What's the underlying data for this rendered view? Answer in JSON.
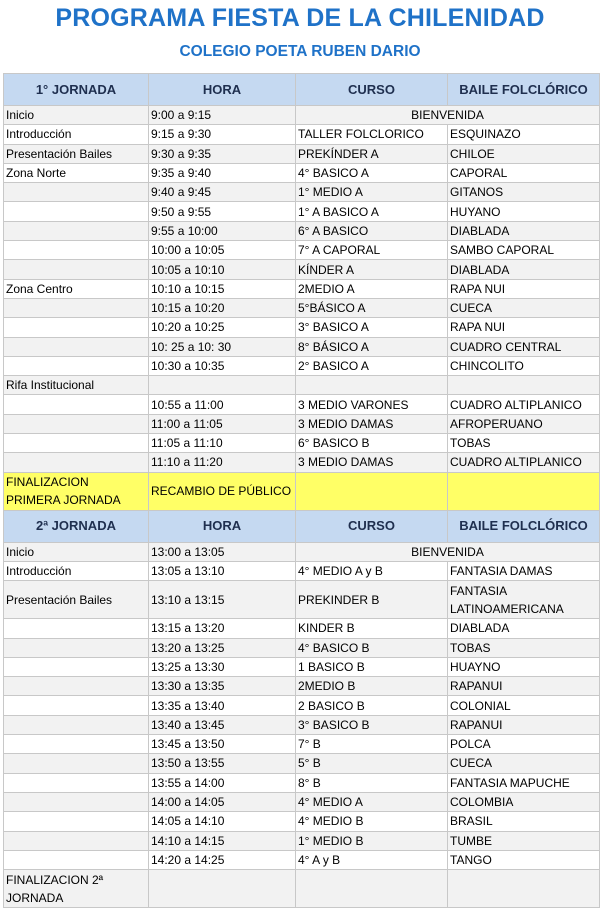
{
  "title": "PROGRAMA FIESTA DE LA CHILENIDAD",
  "subtitle": "COLEGIO POETA RUBEN DARIO",
  "colors": {
    "title": "#1f72c8",
    "header_bg": "#c5d9f1",
    "highlight_bg": "#ffff66",
    "alt_row_bg": "#f2f2f2"
  },
  "sections": [
    {
      "headers": [
        "1° JORNADA",
        "HORA",
        "CURSO",
        "BAILE FOLCLÓRICO"
      ],
      "rows": [
        {
          "label": "Inicio",
          "hora": "9:00 a 9:15",
          "merged": "BIENVENIDA"
        },
        {
          "label": "Introducción",
          "hora": "9:15 a 9:30",
          "curso": "TALLER FOLCLORICO",
          "baile": "ESQUINAZO"
        },
        {
          "label": "Presentación Bailes",
          "hora": "9:30 a 9:35",
          "curso": "PREKÍNDER A",
          "baile": "CHILOE"
        },
        {
          "label": "Zona Norte",
          "hora": "9:35 a 9:40",
          "curso": "4° BASICO A",
          "baile": "CAPORAL"
        },
        {
          "label": "",
          "hora": "9:40 a 9:45",
          "curso": "1° MEDIO A",
          "baile": "GITANOS"
        },
        {
          "label": "",
          "hora": "9:50 a 9:55",
          "curso": "1° A BASICO A",
          "baile": "HUYANO"
        },
        {
          "label": "",
          "hora": "9:55 a 10:00",
          "curso": "6° A BASICO",
          "baile": "DIABLADA"
        },
        {
          "label": "",
          "hora": "10:00 a 10:05",
          "curso": "7° A CAPORAL",
          "baile": " SAMBO CAPORAL"
        },
        {
          "label": "",
          "hora": "10:05 a 10:10",
          "curso": "KÍNDER A",
          "baile": "DIABLADA"
        },
        {
          "label": "Zona Centro",
          "hora": "10:10 a 10:15",
          "curso": "2MEDIO A",
          "baile": "RAPA NUI"
        },
        {
          "label": "",
          "hora": "10:15 a 10:20",
          "curso": "5°BÁSICO A",
          "baile": "CUECA"
        },
        {
          "label": "",
          "hora": "10:20 a 10:25",
          "curso": "3° BASICO A",
          "baile": "RAPA NUI"
        },
        {
          "label": "",
          "hora": "10: 25 a 10: 30",
          "curso": "8° BÁSICO A",
          "baile": "CUADRO CENTRAL"
        },
        {
          "label": "",
          "hora": "10:30 a 10:35",
          "curso": "2° BASICO A",
          "baile": "CHINCOLITO"
        },
        {
          "label": "Rifa Institucional",
          "hora": "",
          "curso": "",
          "baile": ""
        },
        {
          "label": "",
          "hora": "10:55 a 11:00",
          "curso": "3 MEDIO VARONES",
          "baile": "CUADRO ALTIPLANICO"
        },
        {
          "label": "",
          "hora": "11:00 a 11:05",
          "curso": "3 MEDIO DAMAS",
          "baile": "AFROPERUANO"
        },
        {
          "label": "",
          "hora": "11:05 a 11:10",
          "curso": "6° BASICO B",
          "baile": "TOBAS"
        },
        {
          "label": "",
          "hora": "11:10 a 11:20",
          "curso": "3 MEDIO DAMAS",
          "baile": "CUADRO ALTIPLANICO"
        },
        {
          "label": "FINALIZACION PRIMERA JORNADA",
          "hora": "RECAMBIO DE PÚBLICO",
          "curso": "",
          "baile": "",
          "highlight": true,
          "tall": true
        }
      ]
    },
    {
      "headers": [
        "2ª JORNADA",
        "HORA",
        "CURSO",
        "BAILE FOLCLÓRICO"
      ],
      "rows": [
        {
          "label": "Inicio",
          "hora": "13:00 a 13:05",
          "merged": "BIENVENIDA"
        },
        {
          "label": "Introducción",
          "hora": "13:05 a 13:10",
          "curso": "4° MEDIO A y B",
          "baile": "FANTASIA DAMAS"
        },
        {
          "label": "Presentación Bailes",
          "hora": "13:10 a 13:15",
          "curso": "PREKINDER B",
          "baile": "FANTASIA LATINOAMERICANA",
          "tall": true
        },
        {
          "label": "",
          "hora": "13:15 a 13:20",
          "curso": "KINDER B",
          "baile": "DIABLADA"
        },
        {
          "label": "",
          "hora": "13:20 a 13:25",
          "curso": "4° BASICO B",
          "baile": "TOBAS"
        },
        {
          "label": "",
          "hora": "13:25 a 13:30",
          "curso": "1 BASICO B",
          "baile": "HUAYNO"
        },
        {
          "label": "",
          "hora": "13:30 a 13:35",
          "curso": "2MEDIO B",
          "baile": "RAPANUI"
        },
        {
          "label": "",
          "hora": "13:35 a 13:40",
          "curso": "2 BASICO B",
          "baile": "COLONIAL"
        },
        {
          "label": "",
          "hora": "13:40 a 13:45",
          "curso": "3° BASICO B",
          "baile": "RAPANUI"
        },
        {
          "label": "",
          "hora": "13:45 a 13:50",
          "curso": "7° B",
          "baile": "POLCA"
        },
        {
          "label": "",
          "hora": "13:50 a 13:55",
          "curso": "5° B",
          "baile": "CUECA"
        },
        {
          "label": "",
          "hora": "13:55 a 14:00",
          "curso": "8° B",
          "baile": "FANTASIA MAPUCHE"
        },
        {
          "label": "",
          "hora": "14:00 a 14:05",
          "curso": "4° MEDIO A",
          "baile": "COLOMBIA"
        },
        {
          "label": "",
          "hora": "14:05 a 14:10",
          "curso": "4° MEDIO B",
          "baile": "BRASIL"
        },
        {
          "label": "",
          "hora": "14:10 a 14:15",
          "curso": "1° MEDIO B",
          "baile": "TUMBE"
        },
        {
          "label": "",
          "hora": "14:20 a 14:25",
          "curso": "4° A y B",
          "baile": "TANGO"
        },
        {
          "label": "FINALIZACION 2ª JORNADA",
          "hora": "",
          "curso": "",
          "baile": "",
          "tall": true
        }
      ]
    }
  ]
}
